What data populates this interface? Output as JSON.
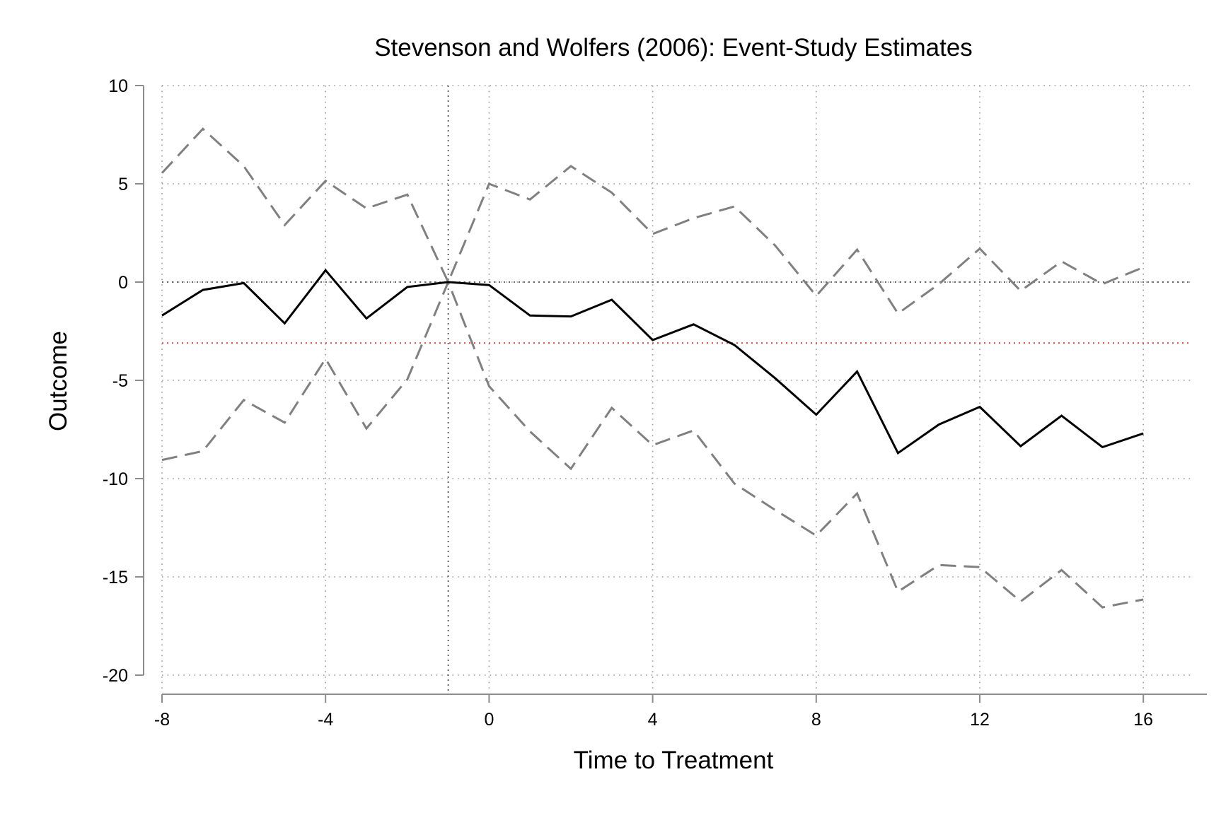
{
  "chart_data": {
    "type": "line",
    "title": "Stevenson and Wolfers (2006): Event-Study Estimates",
    "xlabel": "Time to Treatment",
    "ylabel": "Outcome",
    "xlim": [
      -8,
      17
    ],
    "ylim": [
      -20,
      10
    ],
    "xticks": [
      -8,
      -4,
      0,
      4,
      8,
      12,
      16
    ],
    "yticks": [
      10,
      5,
      0,
      -5,
      -10,
      -15,
      -20
    ],
    "grid": true,
    "reference_lines": {
      "horizontal_zero": 0,
      "vertical": -1,
      "horizontal_mean": -3.1
    },
    "x": [
      -8,
      -7,
      -6,
      -5,
      -4,
      -3,
      -2,
      -1,
      0,
      1,
      2,
      3,
      4,
      5,
      6,
      7,
      8,
      9,
      10,
      11,
      12,
      13,
      14,
      15,
      16
    ],
    "series": [
      {
        "role": "estimate",
        "color": "#000000",
        "style": "solid",
        "values": [
          -1.7,
          -0.4,
          -0.05,
          -2.1,
          0.6,
          -1.85,
          -0.25,
          0,
          -0.15,
          -1.7,
          -1.75,
          -0.9,
          -2.95,
          -2.15,
          -3.2,
          -4.9,
          -6.75,
          -4.55,
          -8.7,
          -7.25,
          -6.35,
          -8.35,
          -6.8,
          -8.4,
          -7.7
        ]
      },
      {
        "role": "upper-ci",
        "color": "#808080",
        "style": "dashed",
        "values": [
          5.55,
          7.8,
          5.9,
          2.9,
          5.15,
          3.75,
          4.45,
          0,
          5.0,
          4.2,
          5.9,
          4.55,
          2.45,
          3.25,
          3.85,
          1.85,
          -0.7,
          1.65,
          -1.6,
          -0.1,
          1.7,
          -0.45,
          1.05,
          -0.1,
          0.75
        ]
      },
      {
        "role": "lower-ci",
        "color": "#808080",
        "style": "dashed",
        "values": [
          -9.05,
          -8.6,
          -6.0,
          -7.15,
          -3.9,
          -7.45,
          -4.95,
          0,
          -5.3,
          -7.6,
          -9.5,
          -6.4,
          -8.3,
          -7.55,
          -10.25,
          -11.6,
          -12.9,
          -10.75,
          -15.75,
          -14.4,
          -14.5,
          -16.25,
          -14.65,
          -16.55,
          -16.15
        ]
      }
    ]
  }
}
